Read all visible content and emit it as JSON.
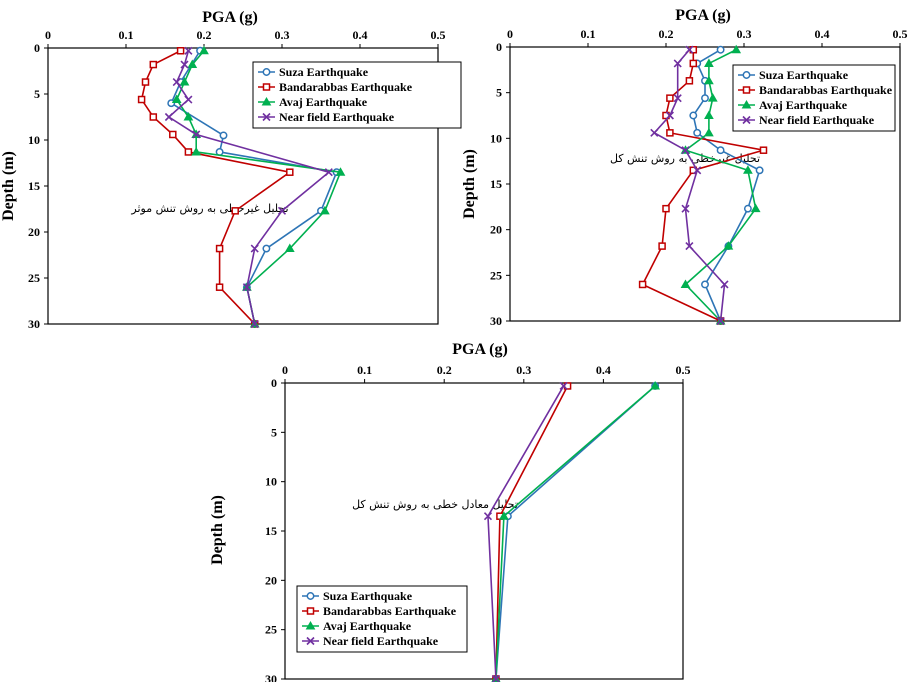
{
  "chart_data": [
    {
      "type": "line",
      "title": "",
      "xlabel": "PGA (g)",
      "ylabel": "Depth (m)",
      "xlim": [
        0,
        0.5
      ],
      "ylim": [
        0,
        30
      ],
      "x_ticks": [
        "0",
        "0.1",
        "0.2",
        "0.3",
        "0.4",
        "0.5"
      ],
      "y_ticks": [
        "0",
        "5",
        "10",
        "15",
        "20",
        "25",
        "30"
      ],
      "y_inverted": true,
      "legend": "top-right",
      "annotation": "تحلیل غیرخطی به روش تنش موثر",
      "series": [
        {
          "name": "Suza Earthquake",
          "color": "#2e75b6",
          "marker": "circle",
          "points": [
            [
              0.195,
              0.3
            ],
            [
              0.17,
              3.7
            ],
            [
              0.158,
              6
            ],
            [
              0.225,
              9.5
            ],
            [
              0.22,
              11.3
            ],
            [
              0.37,
              13.5
            ],
            [
              0.35,
              17.7
            ],
            [
              0.28,
              21.8
            ],
            [
              0.255,
              26
            ],
            [
              0.265,
              30
            ]
          ]
        },
        {
          "name": "Bandarabbas Earthquake",
          "color": "#c00000",
          "marker": "square",
          "points": [
            [
              0.17,
              0.3
            ],
            [
              0.135,
              1.8
            ],
            [
              0.125,
              3.7
            ],
            [
              0.12,
              5.6
            ],
            [
              0.135,
              7.5
            ],
            [
              0.16,
              9.4
            ],
            [
              0.18,
              11.3
            ],
            [
              0.31,
              13.5
            ],
            [
              0.24,
              17.7
            ],
            [
              0.22,
              21.8
            ],
            [
              0.22,
              26
            ],
            [
              0.265,
              30
            ]
          ]
        },
        {
          "name": "Avaj Earthquake",
          "color": "#00b050",
          "marker": "triangle",
          "points": [
            [
              0.2,
              0.3
            ],
            [
              0.185,
              1.8
            ],
            [
              0.175,
              3.7
            ],
            [
              0.165,
              5.6
            ],
            [
              0.18,
              7.5
            ],
            [
              0.19,
              9.4
            ],
            [
              0.19,
              11.3
            ],
            [
              0.375,
              13.5
            ],
            [
              0.355,
              17.7
            ],
            [
              0.31,
              21.8
            ],
            [
              0.255,
              26
            ],
            [
              0.265,
              30
            ]
          ]
        },
        {
          "name": "Near field Earthquake",
          "color": "#7030a0",
          "marker": "x",
          "points": [
            [
              0.18,
              0.3
            ],
            [
              0.175,
              1.8
            ],
            [
              0.165,
              3.7
            ],
            [
              0.18,
              5.6
            ],
            [
              0.155,
              7.5
            ],
            [
              0.19,
              9.4
            ],
            [
              0.36,
              13.5
            ],
            [
              0.3,
              17.7
            ],
            [
              0.265,
              21.8
            ],
            [
              0.255,
              26
            ],
            [
              0.265,
              30
            ]
          ]
        }
      ]
    },
    {
      "type": "line",
      "title": "",
      "xlabel": "PGA (g)",
      "ylabel": "Depth (m)",
      "xlim": [
        0,
        0.5
      ],
      "ylim": [
        0,
        30
      ],
      "x_ticks": [
        "0",
        "0.1",
        "0.2",
        "0.3",
        "0.4",
        "0.5"
      ],
      "y_ticks": [
        "0",
        "5",
        "10",
        "15",
        "20",
        "25",
        "30"
      ],
      "y_inverted": true,
      "legend": "top-right",
      "annotation": "تحلیل غیرخطی به روش تنش کل",
      "series": [
        {
          "name": "Suza Earthquake",
          "color": "#2e75b6",
          "marker": "circle",
          "points": [
            [
              0.27,
              0.3
            ],
            [
              0.24,
              1.8
            ],
            [
              0.25,
              3.7
            ],
            [
              0.25,
              5.6
            ],
            [
              0.235,
              7.5
            ],
            [
              0.24,
              9.4
            ],
            [
              0.27,
              11.3
            ],
            [
              0.32,
              13.5
            ],
            [
              0.305,
              17.7
            ],
            [
              0.28,
              21.8
            ],
            [
              0.25,
              26
            ],
            [
              0.27,
              30
            ]
          ]
        },
        {
          "name": "Bandarabbas Earthquake",
          "color": "#c00000",
          "marker": "square",
          "points": [
            [
              0.235,
              0.3
            ],
            [
              0.235,
              1.8
            ],
            [
              0.23,
              3.7
            ],
            [
              0.205,
              5.6
            ],
            [
              0.2,
              7.5
            ],
            [
              0.205,
              9.4
            ],
            [
              0.325,
              11.3
            ],
            [
              0.235,
              13.5
            ],
            [
              0.2,
              17.7
            ],
            [
              0.195,
              21.8
            ],
            [
              0.17,
              26
            ],
            [
              0.27,
              30
            ]
          ]
        },
        {
          "name": "Avaj Earthquake",
          "color": "#00b050",
          "marker": "triangle",
          "points": [
            [
              0.29,
              0.3
            ],
            [
              0.255,
              1.8
            ],
            [
              0.255,
              3.7
            ],
            [
              0.26,
              5.6
            ],
            [
              0.255,
              7.5
            ],
            [
              0.255,
              9.4
            ],
            [
              0.225,
              11.3
            ],
            [
              0.305,
              13.5
            ],
            [
              0.315,
              17.7
            ],
            [
              0.28,
              21.8
            ],
            [
              0.225,
              26
            ],
            [
              0.27,
              30
            ]
          ]
        },
        {
          "name": "Near field Earthquake",
          "color": "#7030a0",
          "marker": "x",
          "points": [
            [
              0.23,
              0.3
            ],
            [
              0.215,
              1.8
            ],
            [
              0.215,
              5.6
            ],
            [
              0.205,
              7.5
            ],
            [
              0.185,
              9.4
            ],
            [
              0.225,
              11.3
            ],
            [
              0.24,
              13.5
            ],
            [
              0.225,
              17.7
            ],
            [
              0.23,
              21.8
            ],
            [
              0.275,
              26
            ],
            [
              0.27,
              30
            ]
          ]
        }
      ]
    },
    {
      "type": "line",
      "title": "",
      "xlabel": "PGA (g)",
      "ylabel": "Depth (m)",
      "xlim": [
        0,
        0.5
      ],
      "ylim": [
        0,
        30
      ],
      "x_ticks": [
        "0",
        "0.1",
        "0.2",
        "0.3",
        "0.4",
        "0.5"
      ],
      "y_ticks": [
        "0",
        "5",
        "10",
        "15",
        "20",
        "25",
        "30"
      ],
      "y_inverted": true,
      "legend": "bottom-left",
      "annotation": "تحلیل معادل خطی به روش تنش کل",
      "series": [
        {
          "name": "Suza Earthquake",
          "color": "#2e75b6",
          "marker": "circle",
          "points": [
            [
              0.465,
              0.3
            ],
            [
              0.28,
              13.5
            ],
            [
              0.265,
              30
            ]
          ]
        },
        {
          "name": "Bandarabbas Earthquake",
          "color": "#c00000",
          "marker": "square",
          "points": [
            [
              0.355,
              0.3
            ],
            [
              0.27,
              13.5
            ],
            [
              0.265,
              30
            ]
          ]
        },
        {
          "name": "Avaj Earthquake",
          "color": "#00b050",
          "marker": "triangle",
          "points": [
            [
              0.465,
              0.3
            ],
            [
              0.275,
              13.5
            ],
            [
              0.265,
              30
            ]
          ]
        },
        {
          "name": "Near field Earthquake",
          "color": "#7030a0",
          "marker": "x",
          "points": [
            [
              0.35,
              0.3
            ],
            [
              0.255,
              13.5
            ],
            [
              0.265,
              30
            ]
          ]
        }
      ]
    }
  ]
}
